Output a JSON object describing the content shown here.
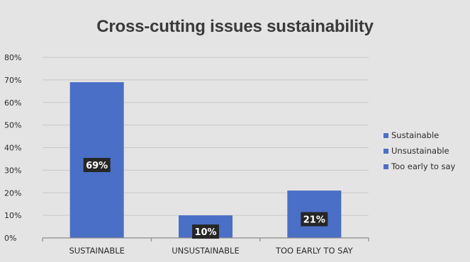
{
  "chart_data": {
    "type": "bar",
    "title": "Cross-cutting issues sustainability",
    "categories": [
      "SUSTAINABLE",
      "UNSUSTAINABLE",
      "TOO EARLY TO SAY"
    ],
    "values": [
      69,
      10,
      21
    ],
    "data_labels": [
      "69%",
      "10%",
      "21%"
    ],
    "yticks": [
      "0%",
      "10%",
      "20%",
      "30%",
      "40%",
      "50%",
      "60%",
      "70%",
      "80%"
    ],
    "ylim": [
      0,
      80
    ],
    "xlabel": "",
    "ylabel": "",
    "grid": true,
    "legend_position": "right",
    "legend": [
      "Sustainable",
      "Unsustainable",
      "Too early to say"
    ],
    "colors": {
      "bar": "#4a6fc6",
      "legend_swatch": "#4a6fc6",
      "grid": "#c8c8c8",
      "axis": "#8a8a8a",
      "label_box": "#262626",
      "background": "#e4e4e4"
    }
  }
}
